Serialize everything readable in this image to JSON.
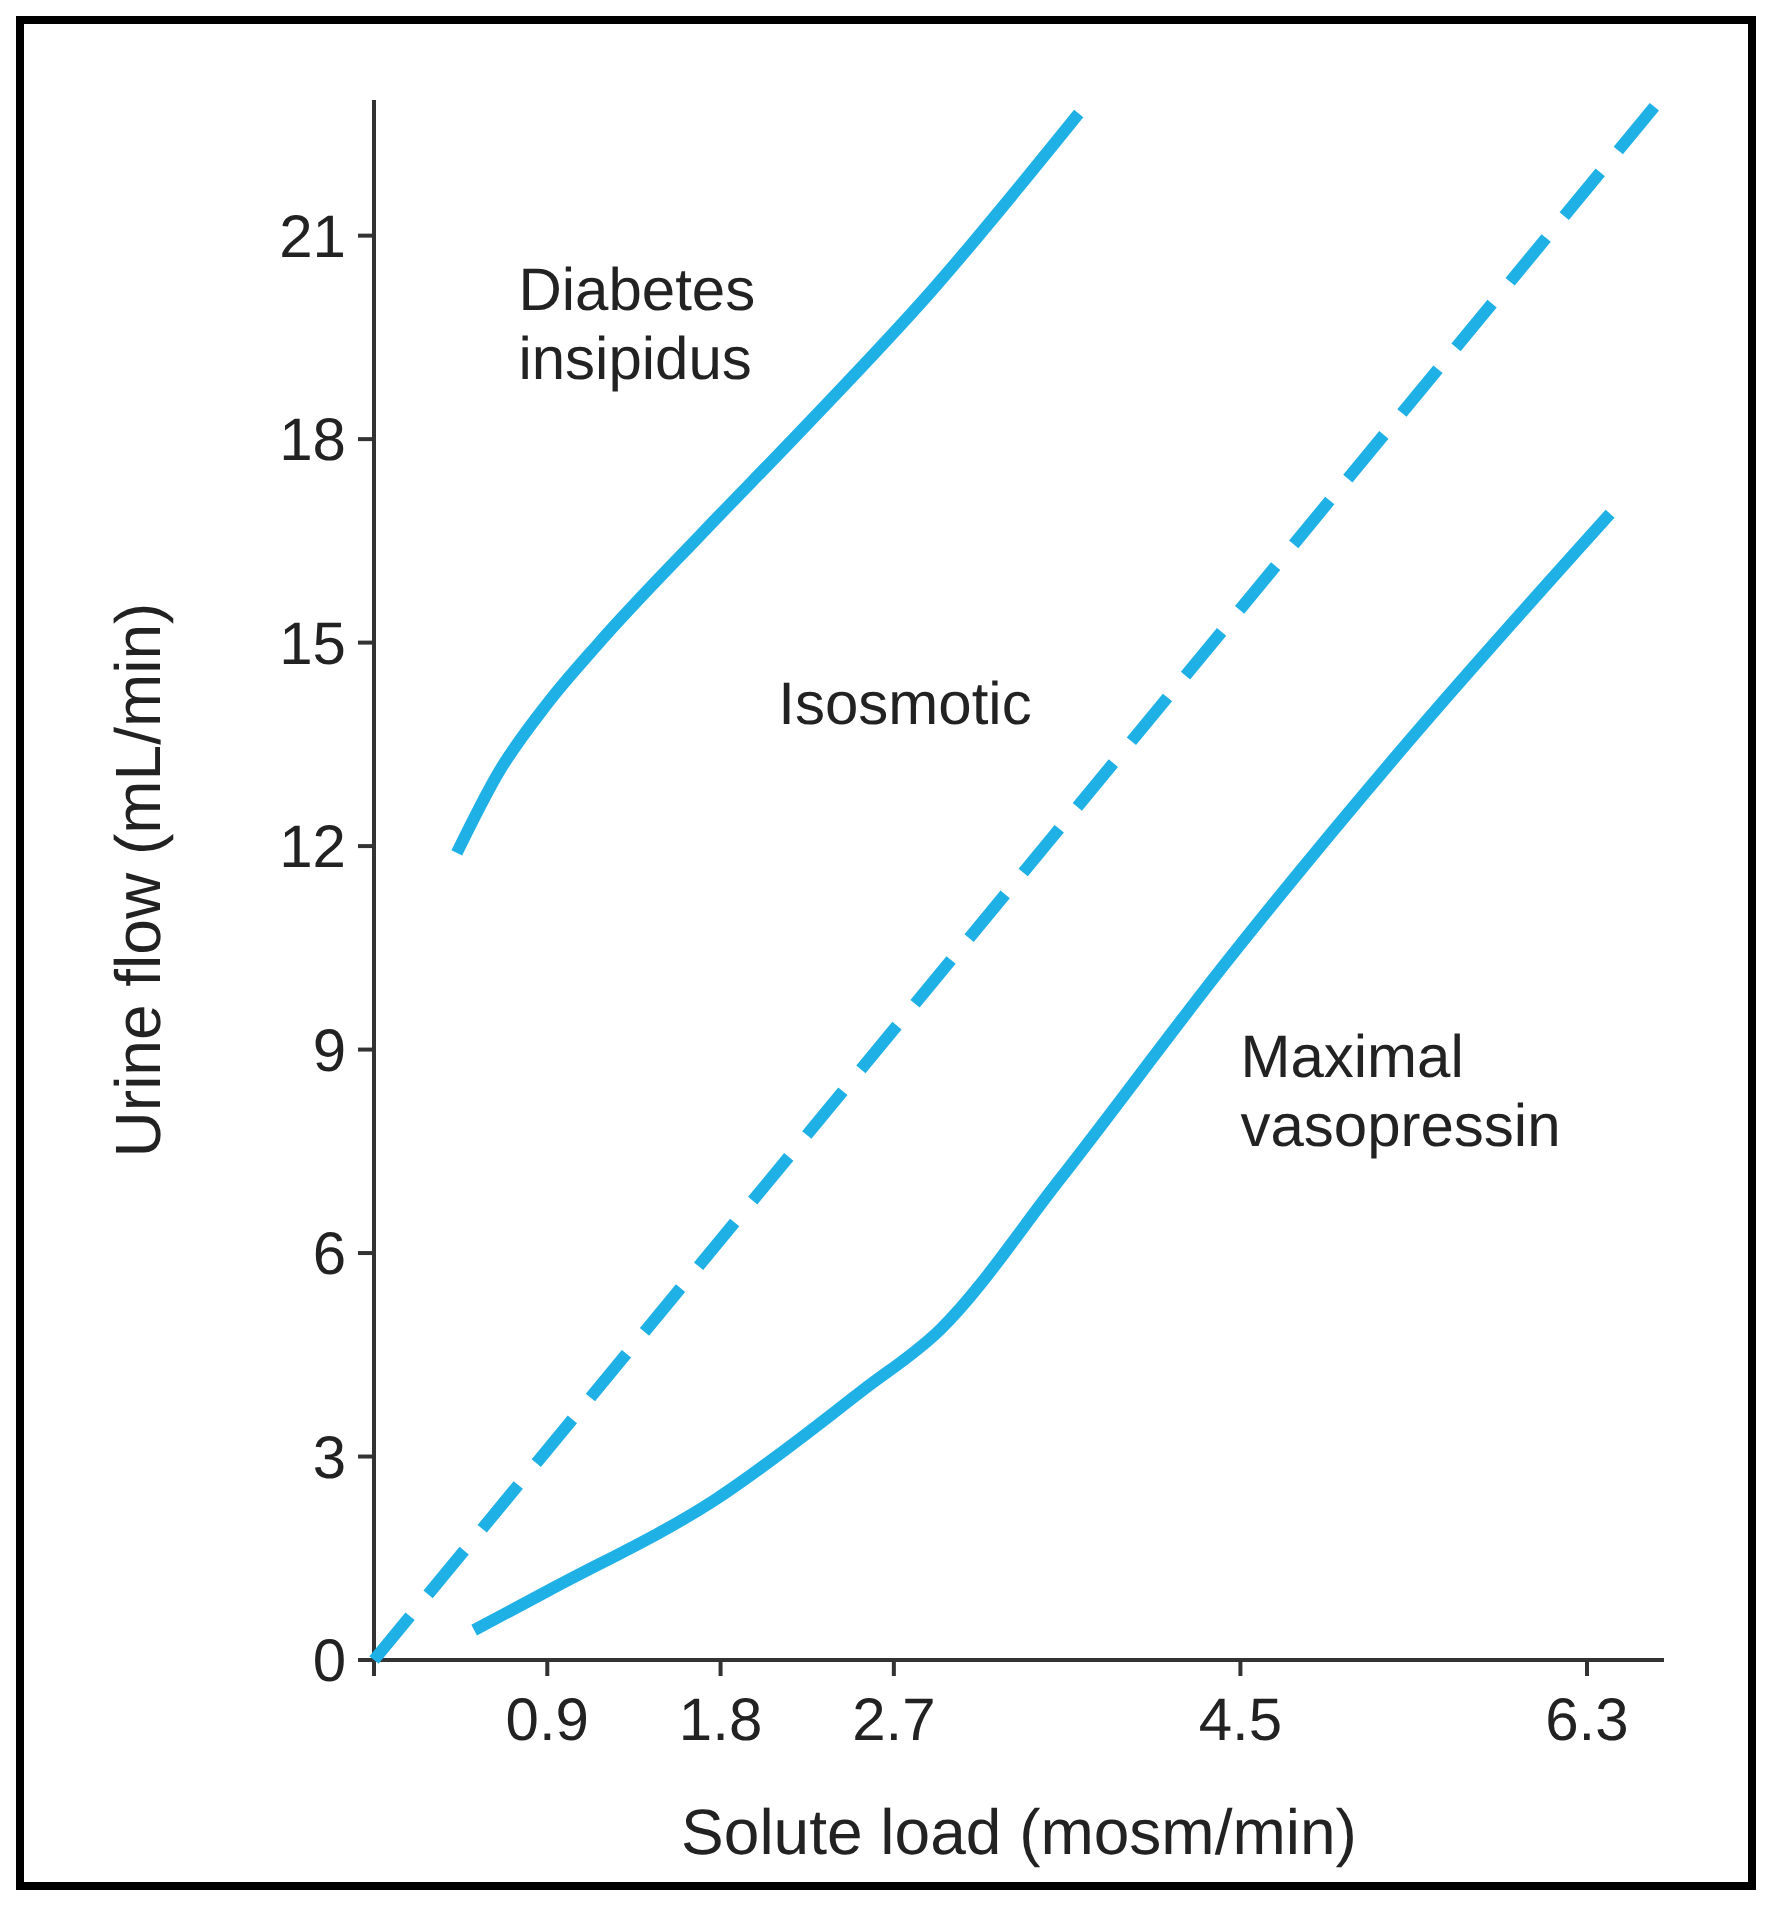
{
  "chart_data": {
    "type": "line",
    "xlabel": "Solute load (mosm/min)",
    "ylabel": "Urine flow (mL/min)",
    "xlim": [
      0,
      6.7
    ],
    "ylim": [
      0,
      23
    ],
    "xticks": [
      {
        "value": 0,
        "label": null
      },
      0.9,
      1.8,
      2.7,
      4.5,
      6.3
    ],
    "yticks": [
      0,
      3,
      6,
      9,
      12,
      15,
      18,
      21
    ],
    "grid": false,
    "marker": "none",
    "series": [
      {
        "name": "Diabetes insipidus",
        "color": "#1fb0e6",
        "line_style": "solid",
        "x": [
          0.43,
          0.65,
          0.9,
          1.17,
          1.7,
          2.21,
          2.9,
          3.66
        ],
        "values": [
          11.9,
          13.1,
          14.1,
          15.0,
          16.6,
          18.1,
          20.2,
          22.8
        ]
      },
      {
        "name": "Isosmotic",
        "color": "#1fb0e6",
        "line_style": "dashed",
        "x": [
          0,
          6.65
        ],
        "values": [
          0,
          22.9
        ]
      },
      {
        "name": "Maximal vasopressin",
        "color": "#1fb0e6",
        "line_style": "solid",
        "x": [
          0.52,
          0.91,
          1.77,
          2.54,
          2.94,
          3.56,
          4.43,
          5.33,
          6.42
        ],
        "values": [
          0.44,
          1.03,
          2.36,
          3.98,
          4.87,
          7.08,
          10.3,
          13.4,
          16.9
        ]
      }
    ]
  }
}
